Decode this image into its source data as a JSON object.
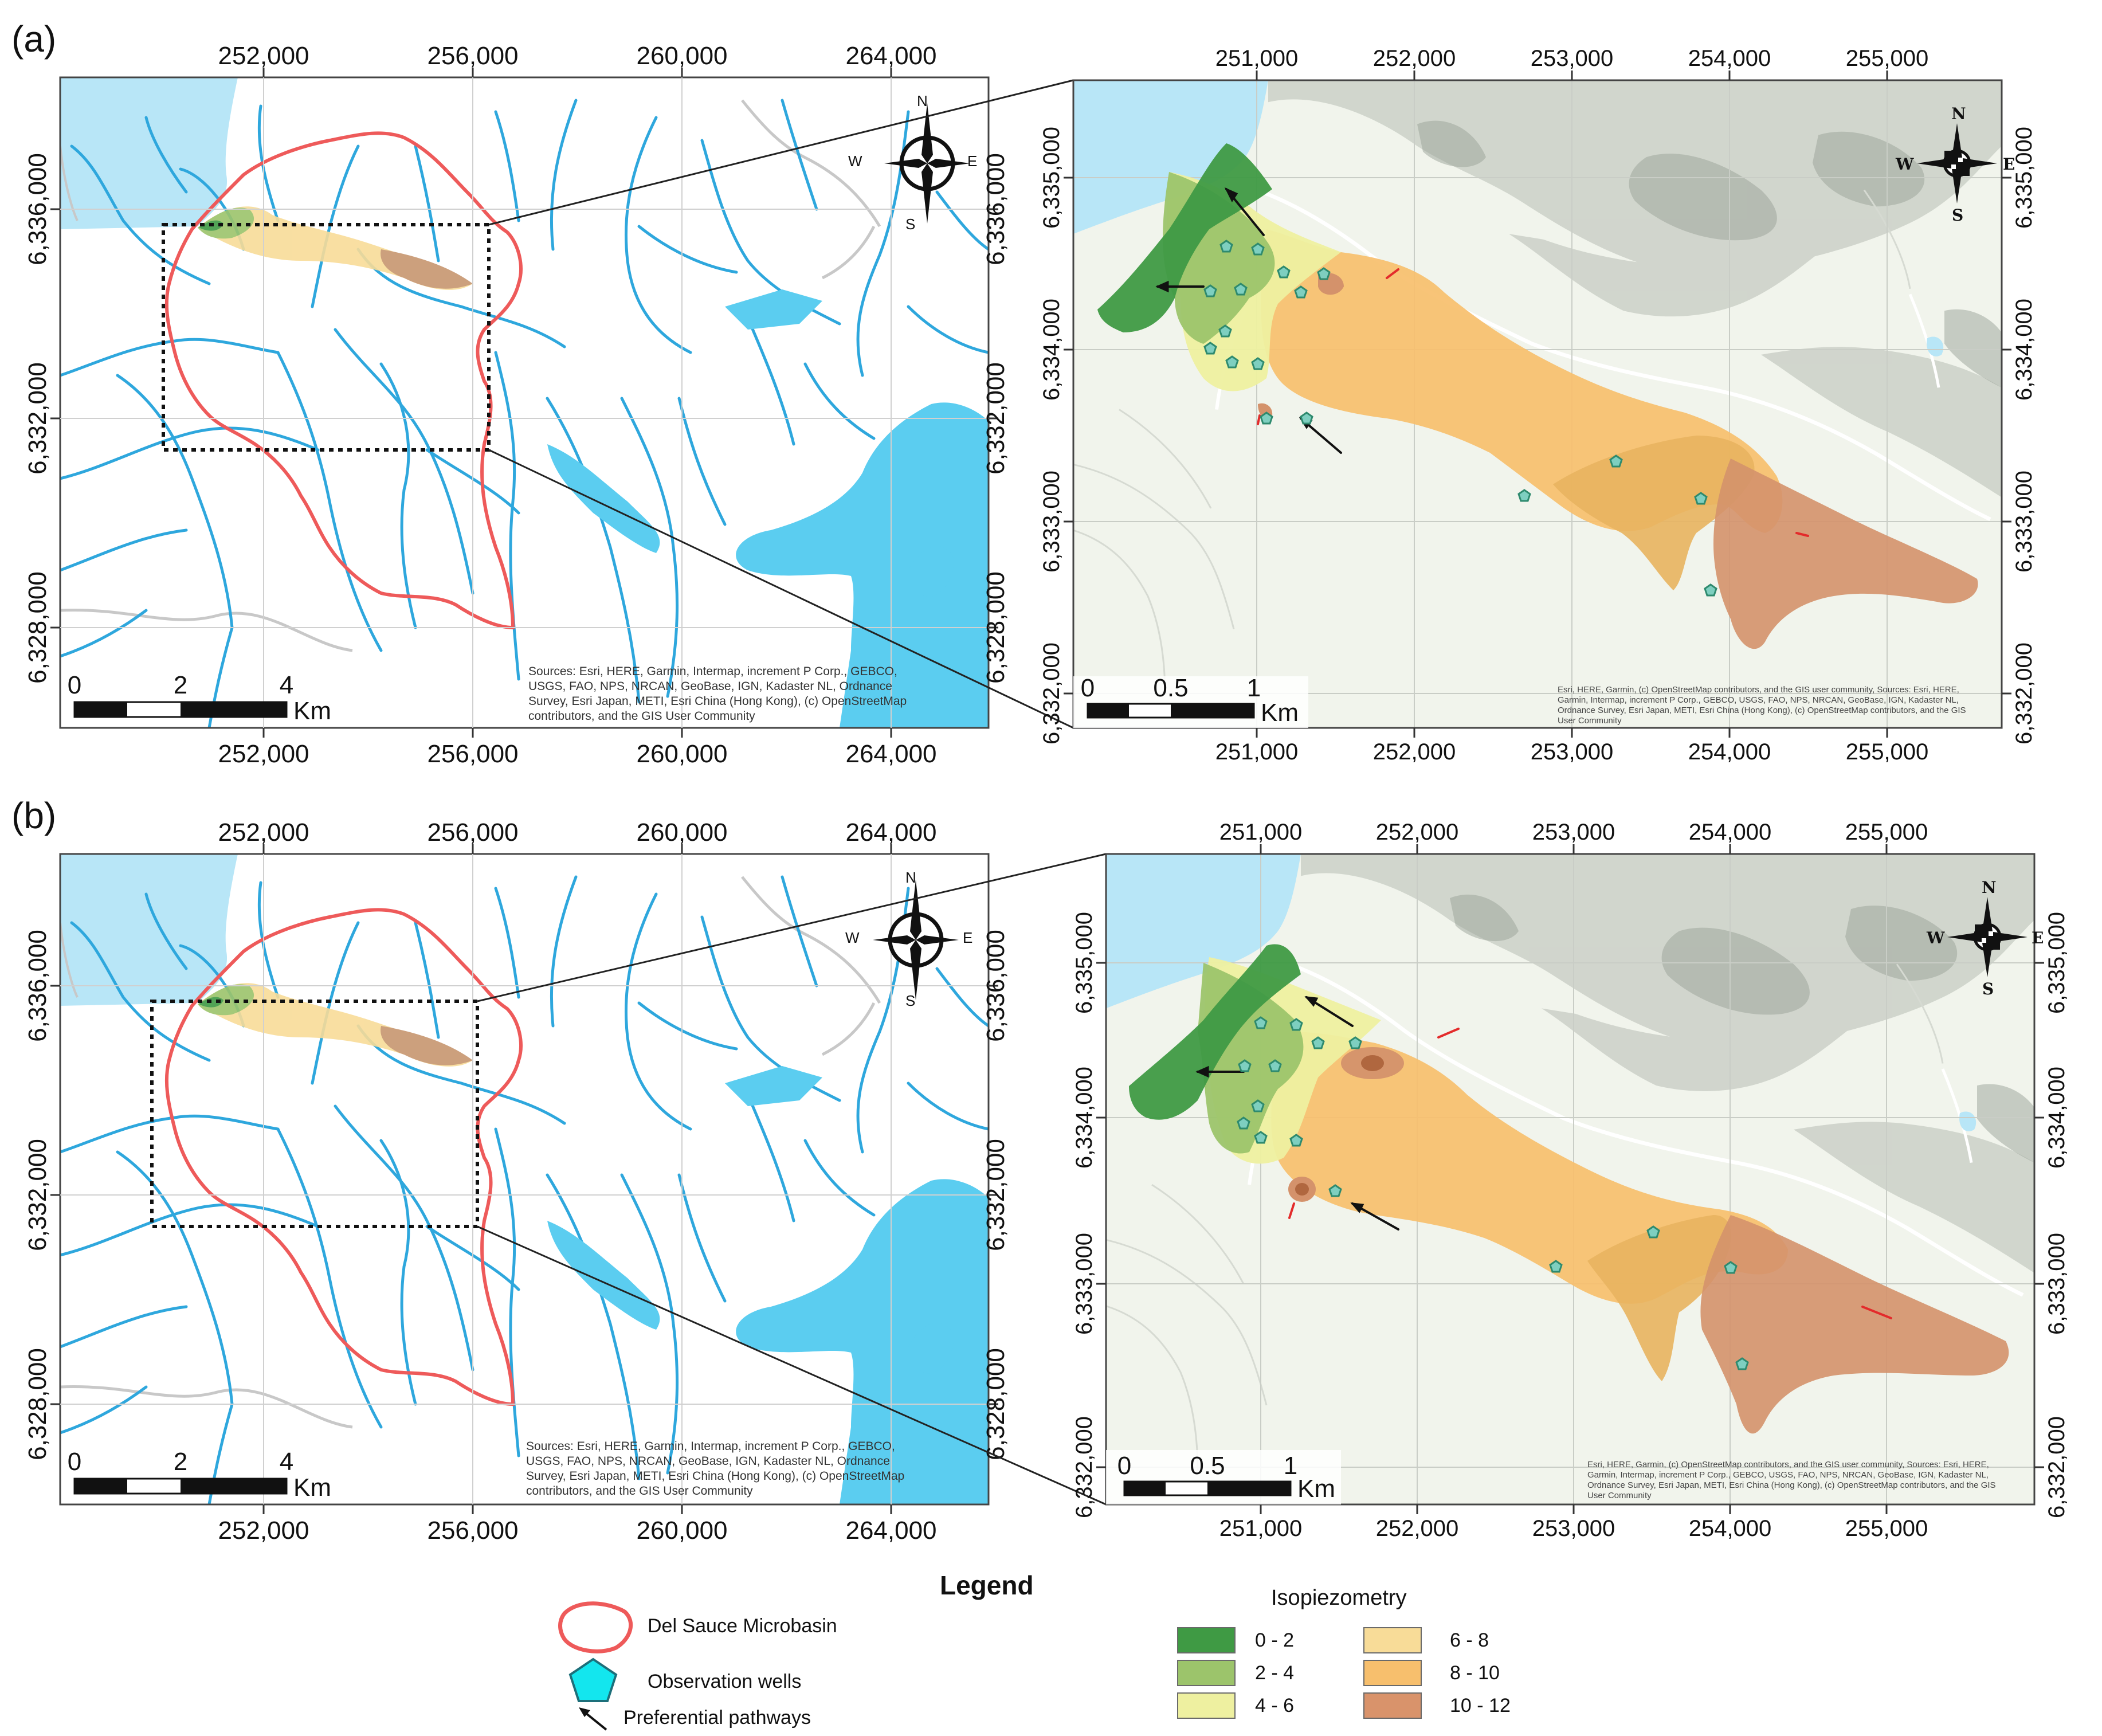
{
  "panels": [
    {
      "label": "(a)",
      "overview": {
        "x_ticks": [
          "252,000",
          "256,000",
          "260,000",
          "264,000"
        ],
        "y_ticks": [
          "6,336,000",
          "6,332,000",
          "6,328,000"
        ],
        "scale": {
          "labels": [
            "0",
            "2",
            "4"
          ],
          "unit": "Km"
        },
        "compass": [
          "N",
          "S",
          "W",
          "E"
        ],
        "sources": [
          "Sources: Esri, HERE, Garmin, Intermap, increment P Corp., GEBCO,",
          "USGS, FAO, NPS, NRCAN, GeoBase, IGN, Kadaster NL, Ordnance",
          "Survey, Esri Japan, METI, Esri China (Hong Kong), (c) OpenStreetMap",
          "contributors, and the GIS User Community"
        ]
      },
      "detail": {
        "x_ticks": [
          "251,000",
          "252,000",
          "253,000",
          "254,000",
          "255,000"
        ],
        "y_ticks": [
          "6,335,000",
          "6,334,000",
          "6,333,000",
          "6,332,000"
        ],
        "scale": {
          "labels": [
            "0",
            "0.5",
            "1"
          ],
          "unit": "Km"
        },
        "compass": [
          "N",
          "S",
          "W",
          "E"
        ],
        "sources": [
          "Esri, HERE, Garmin, (c) OpenStreetMap contributors, and the GIS user community, Sources: Esri, HERE,",
          "Garmin, Intermap, increment P Corp., GEBCO, USGS, FAO, NPS, NRCAN, GeoBase, IGN, Kadaster NL,",
          "Ordnance Survey, Esri Japan, METI, Esri China (Hong Kong), (c) OpenStreetMap contributors, and the GIS",
          "User Community"
        ]
      }
    },
    {
      "label": "(b)",
      "overview": {
        "x_ticks": [
          "252,000",
          "256,000",
          "260,000",
          "264,000"
        ],
        "y_ticks": [
          "6,336,000",
          "6,332,000",
          "6,328,000"
        ],
        "scale": {
          "labels": [
            "0",
            "2",
            "4"
          ],
          "unit": "Km"
        },
        "compass": [
          "N",
          "S",
          "W",
          "E"
        ],
        "sources": [
          "Sources: Esri, HERE, Garmin, Intermap, increment P Corp., GEBCO,",
          "USGS, FAO, NPS, NRCAN, GeoBase, IGN, Kadaster NL, Ordnance",
          "Survey, Esri Japan, METI, Esri China (Hong Kong), (c) OpenStreetMap",
          "contributors, and the GIS User Community"
        ]
      },
      "detail": {
        "x_ticks": [
          "251,000",
          "252,000",
          "253,000",
          "254,000",
          "255,000"
        ],
        "y_ticks": [
          "6,335,000",
          "6,334,000",
          "6,333,000",
          "6,332,000"
        ],
        "scale": {
          "labels": [
            "0",
            "0.5",
            "1"
          ],
          "unit": "Km"
        },
        "compass": [
          "N",
          "S",
          "W",
          "E"
        ],
        "sources": [
          "Esri, HERE, Garmin, (c) OpenStreetMap contributors, and the GIS user community, Sources: Esri, HERE,",
          "Garmin, Intermap, increment P Corp., GEBCO, USGS, FAO, NPS, NRCAN, GeoBase, IGN, Kadaster NL,",
          "Ordnance Survey, Esri Japan, METI, Esri China (Hong Kong), (c) OpenStreetMap contributors, and the GIS",
          "User Community"
        ]
      }
    }
  ],
  "legend": {
    "title": "Legend",
    "items": [
      "Del Sauce Microbasin",
      "Observation wells",
      "Preferential pathways"
    ],
    "isopiezometry": {
      "title": "Isopiezometry",
      "classes": [
        {
          "label": "0 - 2",
          "color": "#3f9a44"
        },
        {
          "label": "2 - 4",
          "color": "#9cc46b"
        },
        {
          "label": "4 - 6",
          "color": "#eef0a0"
        },
        {
          "label": "6 - 8",
          "color": "#f8dc98"
        },
        {
          "label": "8 - 10",
          "color": "#f7bf6d"
        },
        {
          "label": "10 - 12",
          "color": "#d9936b"
        }
      ]
    }
  },
  "colors": {
    "water": "#b8e6f7",
    "river": "#2ea7dd",
    "lake": "#5bcdf0",
    "basin_outline": "#ee5a5a",
    "well": "#7ecfc0",
    "pathway_black": "#111111",
    "pathway_red": "#e32b2b",
    "terrain": "#f1f4ec"
  }
}
